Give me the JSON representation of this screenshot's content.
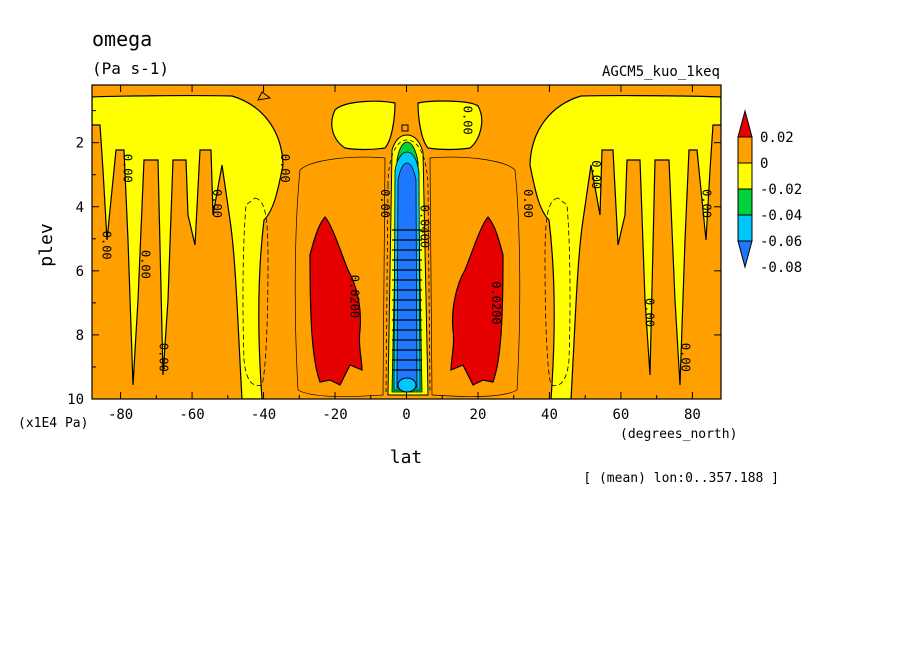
{
  "chart_data": {
    "type": "heatmap",
    "title": "omega",
    "units": "(Pa s-1)",
    "dataset": "AGCM5_kuo_1keq",
    "xlabel": "lat",
    "xunits": "(degrees_north)",
    "ylabel": "plev",
    "yunits": "(x1E4 Pa)",
    "note": "[ (mean) lon:0..357.188 ]",
    "xlim": [
      -88,
      88
    ],
    "ylim": [
      10,
      0.2
    ],
    "xticks": [
      -80,
      -60,
      -40,
      -20,
      0,
      20,
      40,
      60,
      80
    ],
    "xtick_labels": [
      "-80",
      "-60",
      "-40",
      "-20",
      "0",
      "20",
      "40",
      "60",
      "80"
    ],
    "yticks": [
      2,
      4,
      6,
      8,
      10
    ],
    "ytick_labels": [
      "2",
      "4",
      "6",
      "8",
      "10"
    ],
    "colorbar": {
      "colors": [
        "#1e78ff",
        "#00c8ff",
        "#00d23c",
        "#ffff00",
        "#ffa000",
        "#e60000"
      ],
      "labels": [
        "0.02",
        "0",
        "-0.02",
        "-0.04",
        "-0.06",
        "-0.08"
      ]
    },
    "contour_labels": [
      {
        "text": "0.00",
        "lat": -84,
        "plev": 5.2
      },
      {
        "text": "0.00",
        "lat": -78,
        "plev": 2.8
      },
      {
        "text": "0.00",
        "lat": -73,
        "plev": 5.8
      },
      {
        "text": "0.00",
        "lat": -68,
        "plev": 8.7
      },
      {
        "text": "0.00",
        "lat": -53,
        "plev": 3.9
      },
      {
        "text": "0.00",
        "lat": -34,
        "plev": 2.8
      },
      {
        "text": "0.0200",
        "lat": -14.5,
        "plev": 6.8
      },
      {
        "text": "0.00",
        "lat": -6,
        "plev": 3.9
      },
      {
        "text": "-0.0400",
        "lat": 5,
        "plev": 4.5
      },
      {
        "text": "0.00",
        "lat": 17,
        "plev": 1.3
      },
      {
        "text": "0.0200",
        "lat": 25,
        "plev": 7.0
      },
      {
        "text": "0.00",
        "lat": 34,
        "plev": 3.9
      },
      {
        "text": "0.00",
        "lat": 53,
        "plev": 3.0
      },
      {
        "text": "0.00",
        "lat": 68,
        "plev": 7.3
      },
      {
        "text": "0.00",
        "lat": 78,
        "plev": 8.7
      },
      {
        "text": "0.00",
        "lat": 84,
        "plev": 3.9
      }
    ]
  }
}
